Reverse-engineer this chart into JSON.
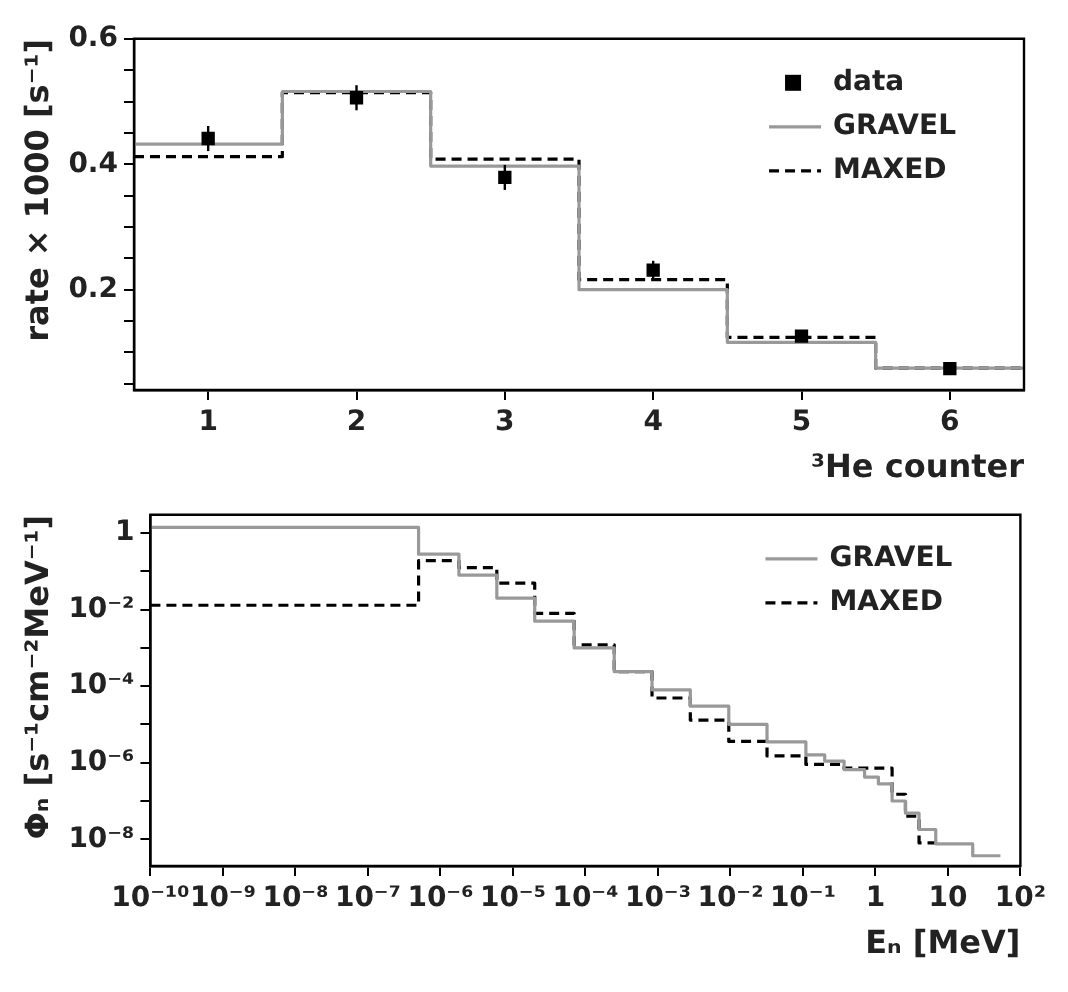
{
  "chart_data": [
    {
      "type": "step",
      "ylabel": "rate × 1000 [s⁻¹]",
      "xlabel": "³He counter",
      "xlim": [
        0.5,
        6.5
      ],
      "xticks": [
        1,
        2,
        3,
        4,
        5,
        6
      ],
      "ylim": [
        0.04,
        0.6
      ],
      "yticks": [
        {
          "value": 0.05,
          "label": null
        },
        {
          "value": 0.1,
          "label": null
        },
        {
          "value": 0.15,
          "label": null
        },
        0.2,
        {
          "value": 0.25,
          "label": null
        },
        {
          "value": 0.3,
          "label": null
        },
        {
          "value": 0.35,
          "label": null
        },
        0.4,
        {
          "value": 0.45,
          "label": null
        },
        {
          "value": 0.5,
          "label": null
        },
        {
          "value": 0.55,
          "label": null
        },
        0.6
      ],
      "legend": "top right",
      "grid": false,
      "series": [
        {
          "name": "data",
          "type": "scatter",
          "marker": "square",
          "color": "#000000",
          "x": [
            1,
            2,
            3,
            4,
            5,
            6
          ],
          "values": [
            0.441,
            0.506,
            0.379,
            0.231,
            0.126,
            0.074
          ],
          "errors": [
            0.02,
            0.02,
            0.02,
            0.015,
            0.006,
            0.004
          ]
        },
        {
          "name": "GRAVEL",
          "color": "#999999",
          "line_style": "solid",
          "x": [
            0.5,
            1.5,
            2.5,
            3.5,
            4.5,
            5.5,
            6.5
          ],
          "values": [
            0.432,
            0.516,
            0.397,
            0.2,
            0.116,
            0.075,
            0.075
          ]
        },
        {
          "name": "MAXED",
          "color": "#000000",
          "line_style": "dashed",
          "x": [
            0.5,
            1.5,
            2.5,
            3.5,
            4.5,
            5.5,
            6.5
          ],
          "values": [
            0.412,
            0.514,
            0.408,
            0.216,
            0.124,
            0.075,
            0.075
          ]
        }
      ]
    },
    {
      "type": "step",
      "ylabel": "Φₙ [s⁻¹cm⁻²MeV⁻¹]",
      "xlabel": "Eₙ [MeV]",
      "log": "xy",
      "xlim": [
        1e-10,
        100
      ],
      "xticks": [
        {
          "value": 1e-10,
          "label": "10⁻¹⁰"
        },
        {
          "value": 1e-09,
          "label": "10⁻⁹"
        },
        {
          "value": 1e-08,
          "label": "10⁻⁸"
        },
        {
          "value": 1e-07,
          "label": "10⁻⁷"
        },
        {
          "value": 1e-06,
          "label": "10⁻⁶"
        },
        {
          "value": 1e-05,
          "label": "10⁻⁵"
        },
        {
          "value": 0.0001,
          "label": "10⁻⁴"
        },
        {
          "value": 0.001,
          "label": "10⁻³"
        },
        {
          "value": 0.01,
          "label": "10⁻²"
        },
        {
          "value": 0.1,
          "label": "10⁻¹"
        },
        1,
        10,
        {
          "value": 100,
          "label": "10²"
        }
      ],
      "ylim": [
        2e-09,
        3
      ],
      "yticks": [
        {
          "value": 1e-08,
          "label": "10⁻⁸"
        },
        {
          "value": 1e-07,
          "label": null
        },
        {
          "value": 1e-06,
          "label": "10⁻⁶"
        },
        {
          "value": 1e-05,
          "label": null
        },
        {
          "value": 0.0001,
          "label": "10⁻⁴"
        },
        {
          "value": 0.001,
          "label": null
        },
        {
          "value": 0.01,
          "label": "10⁻²"
        },
        {
          "value": 0.1,
          "label": null
        },
        1
      ],
      "legend": "top right",
      "grid": false,
      "series": [
        {
          "name": "GRAVEL",
          "color": "#999999",
          "line_style": "solid",
          "x": [
            1e-10,
            5e-07,
            1.8e-06,
            6e-06,
            2e-05,
            7e-05,
            0.00025,
            0.00083,
            0.0028,
            0.0095,
            0.032,
            0.11,
            0.2,
            0.37,
            0.71,
            1.1,
            1.7,
            2.6,
            4,
            6.8,
            22,
            53
          ],
          "values": [
            1.4,
            0.28,
            0.08,
            0.02,
            0.005,
            0.001,
            0.00024,
            8e-05,
            3e-05,
            1e-05,
            3.5e-06,
            1.6e-06,
            1.1e-06,
            6.6e-07,
            4.2e-07,
            2.8e-07,
            1e-07,
            4.8e-08,
            1.8e-08,
            7.6e-09,
            3.7e-09,
            3.7e-09
          ]
        },
        {
          "name": "MAXED",
          "color": "#000000",
          "line_style": "dashed",
          "x": [
            1e-10,
            5e-07,
            1.8e-06,
            6e-06,
            2e-05,
            7e-05,
            0.00025,
            0.00083,
            0.0028,
            0.0095,
            0.032,
            0.11,
            0.37,
            1.7,
            2.6,
            4,
            6.8
          ],
          "values": [
            0.013,
            0.19,
            0.125,
            0.049,
            0.008,
            0.0012,
            0.00024,
            4.9e-05,
            1.3e-05,
            3.6e-06,
            1.5e-06,
            9e-07,
            7.2e-07,
            1.5e-07,
            4e-08,
            8e-09,
            8e-09
          ]
        }
      ]
    }
  ]
}
